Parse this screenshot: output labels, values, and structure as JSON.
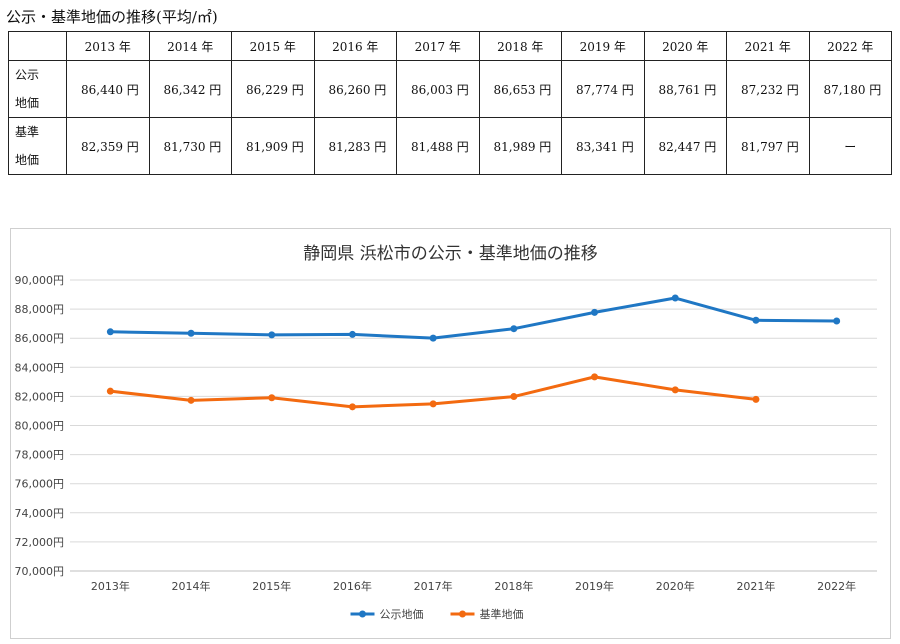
{
  "page_title": "公示・基準地価の推移(平均/㎡)",
  "table": {
    "headers": [
      "",
      "2013 年",
      "2014 年",
      "2015 年",
      "2016 年",
      "2017 年",
      "2018 年",
      "2019 年",
      "2020 年",
      "2021 年",
      "2022 年"
    ],
    "rows": [
      {
        "label_line1": "公示",
        "label_line2": "地価",
        "cells": [
          "86,440 円",
          "86,342 円",
          "86,229 円",
          "86,260 円",
          "86,003 円",
          "86,653 円",
          "87,774 円",
          "88,761 円",
          "87,232 円",
          "87,180 円"
        ]
      },
      {
        "label_line1": "基準",
        "label_line2": "地価",
        "cells": [
          "82,359 円",
          "81,730 円",
          "81,909 円",
          "81,283 円",
          "81,488 円",
          "81,989 円",
          "83,341 円",
          "82,447 円",
          "81,797 円",
          "ー"
        ]
      }
    ]
  },
  "chart_data": {
    "type": "line",
    "title": "静岡県 浜松市の公示・基準地価の推移",
    "categories": [
      "2013年",
      "2014年",
      "2015年",
      "2016年",
      "2017年",
      "2018年",
      "2019年",
      "2020年",
      "2021年",
      "2022年"
    ],
    "series": [
      {
        "name": "公示地価",
        "color": "#1f77c4",
        "values": [
          86440,
          86342,
          86229,
          86260,
          86003,
          86653,
          87774,
          88761,
          87232,
          87180
        ]
      },
      {
        "name": "基準地価",
        "color": "#f36a10",
        "values": [
          82359,
          81730,
          81909,
          81283,
          81488,
          81989,
          83341,
          82447,
          81797,
          null
        ]
      }
    ],
    "ylim": [
      70000,
      90000
    ],
    "ytick_step": 2000,
    "ytick_suffix": "円",
    "grid": true,
    "legend": "bottom-center"
  }
}
